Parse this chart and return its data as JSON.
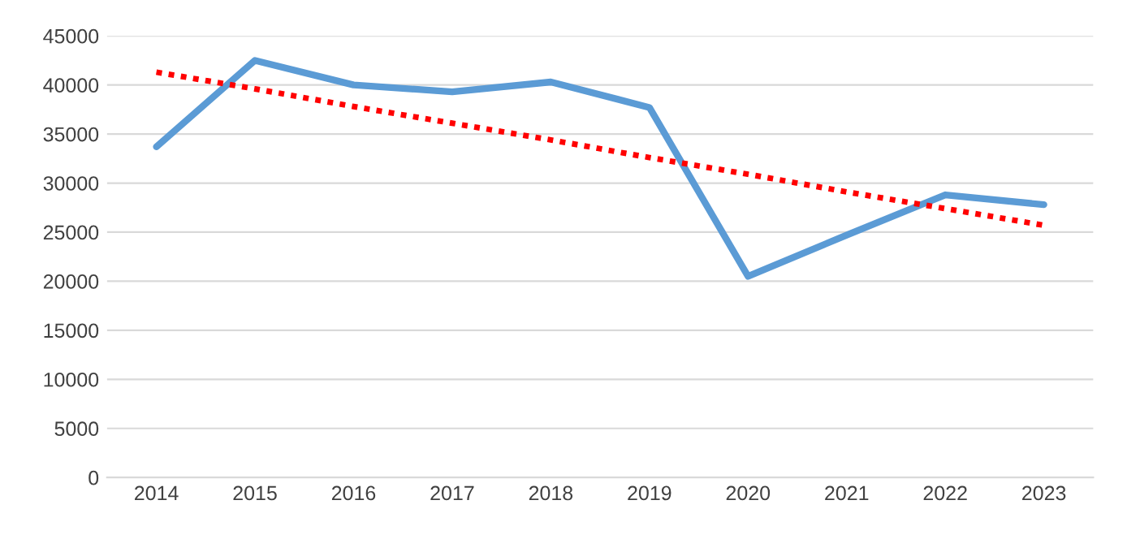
{
  "chart_data": {
    "type": "line",
    "categories": [
      "2014",
      "2015",
      "2016",
      "2017",
      "2018",
      "2019",
      "2020",
      "2021",
      "2022",
      "2023"
    ],
    "series": [
      {
        "color": "#5b9bd5",
        "values": [
          33700,
          42500,
          40000,
          39300,
          40300,
          37700,
          20500,
          24700,
          28800,
          27800
        ],
        "line_style": "solid"
      },
      {
        "type": "line",
        "color": "#ff0000",
        "values": [
          41300,
          39600,
          37800,
          36100,
          34400,
          32600,
          30900,
          29100,
          27400,
          25700
        ],
        "line_style": "dotted"
      }
    ],
    "ylim": [
      0,
      45000
    ],
    "yticks": [
      0,
      5000,
      10000,
      15000,
      20000,
      25000,
      30000,
      35000,
      40000,
      45000
    ],
    "grid": "y",
    "marker": "none"
  }
}
